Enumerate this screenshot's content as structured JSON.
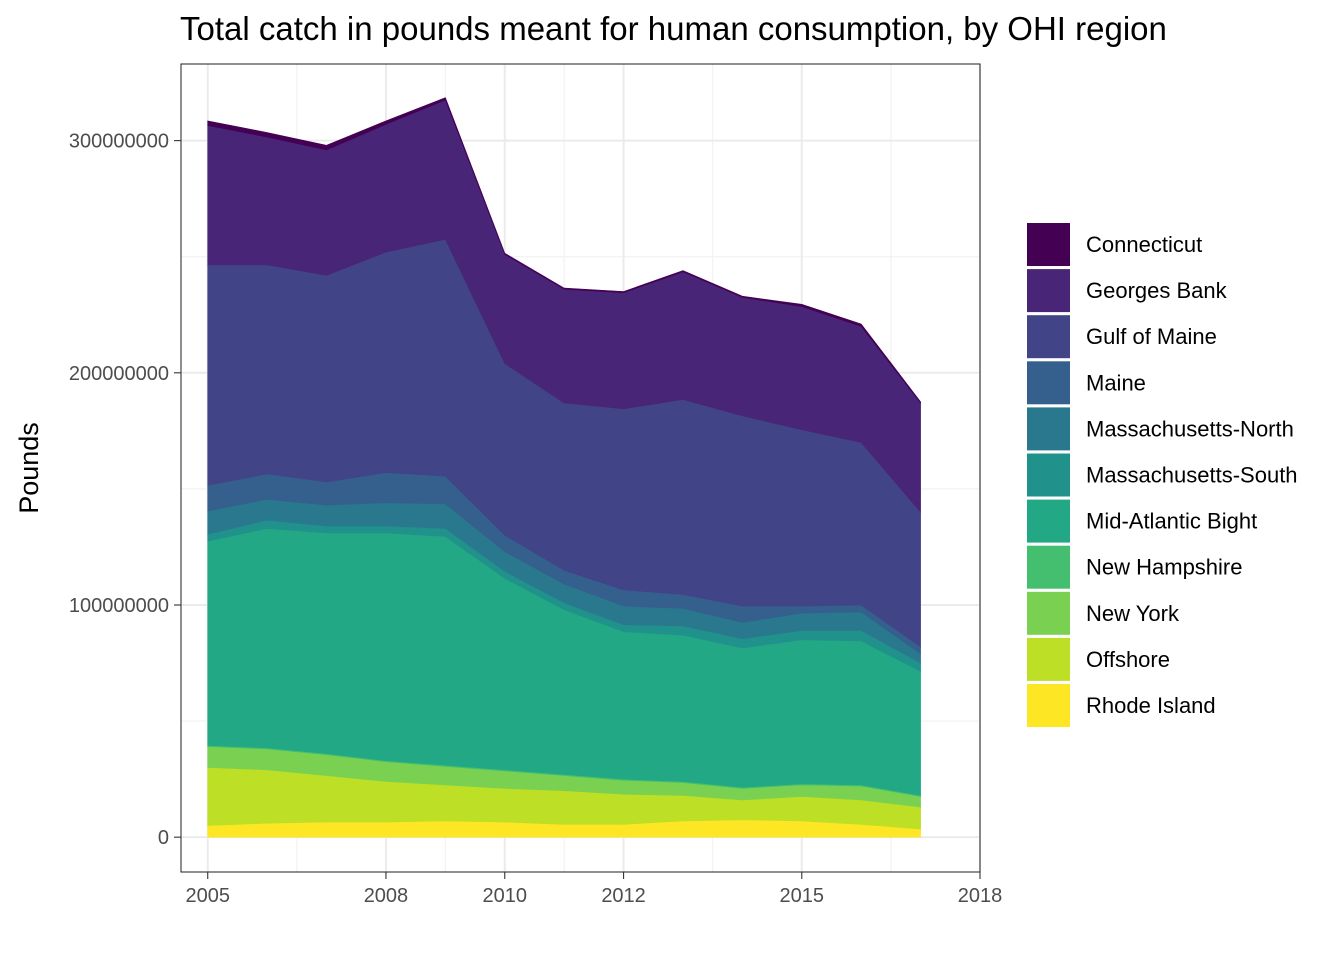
{
  "chart_data": {
    "type": "area",
    "stacked": true,
    "title": "Total catch in pounds meant for human consumption, by OHI region",
    "xlabel": "",
    "ylabel": "Pounds",
    "xlim": [
      2004.55,
      2018.0
    ],
    "ylim": [
      -15000000,
      333000000
    ],
    "x_ticks": [
      2005,
      2008,
      2010,
      2012,
      2015,
      2018
    ],
    "x_tick_labels": [
      "2005",
      "2008",
      "2010",
      "2012",
      "2015",
      "2018"
    ],
    "y_ticks": [
      0,
      100000000,
      200000000,
      300000000
    ],
    "y_tick_labels": [
      "0",
      "100000000",
      "200000000",
      "300000000"
    ],
    "x": [
      2005,
      2006,
      2007,
      2008,
      2009,
      2010,
      2011,
      2012,
      2013,
      2014,
      2015,
      2016,
      2017
    ],
    "grid": true,
    "legend_position": "right",
    "series": [
      {
        "name": "Rhode Island",
        "color": "#FDE725",
        "values": [
          5000000,
          6000000,
          6500000,
          6500000,
          7000000,
          6500000,
          5500000,
          5500000,
          7000000,
          7500000,
          7000000,
          5500000,
          3500000
        ]
      },
      {
        "name": "Offshore",
        "color": "#BDDF26",
        "values": [
          25000000,
          23000000,
          20000000,
          17500000,
          15500000,
          14500000,
          14500000,
          13000000,
          11000000,
          8500000,
          10500000,
          10500000,
          9500000
        ]
      },
      {
        "name": "New York",
        "color": "#7AD151",
        "values": [
          9000000,
          9000000,
          9000000,
          8500000,
          8000000,
          7500000,
          6500000,
          6000000,
          5500000,
          5000000,
          5000000,
          6000000,
          4500000
        ]
      },
      {
        "name": "New Hampshire",
        "color": "#44BF70",
        "values": [
          500000,
          500000,
          500000,
          500000,
          500000,
          500000,
          500000,
          500000,
          500000,
          500000,
          500000,
          500000,
          500000
        ]
      },
      {
        "name": "Mid-Atlantic Bight",
        "color": "#22A884",
        "values": [
          88000000,
          94500000,
          95000000,
          98000000,
          98500000,
          82500000,
          71000000,
          63500000,
          63000000,
          60000000,
          62000000,
          62000000,
          53500000
        ]
      },
      {
        "name": "Massachusetts-South",
        "color": "#21918C",
        "values": [
          3000000,
          3500000,
          3000000,
          3000000,
          3500000,
          3000000,
          3000000,
          3000000,
          4000000,
          4000000,
          4000000,
          4500000,
          3500000
        ]
      },
      {
        "name": "Massachusetts-North",
        "color": "#2A788E",
        "values": [
          10000000,
          9000000,
          9000000,
          10000000,
          10500000,
          8500000,
          8000000,
          8000000,
          7500000,
          7000000,
          7500000,
          8000000,
          4000000
        ]
      },
      {
        "name": "Maine",
        "color": "#355F8D",
        "values": [
          11000000,
          11000000,
          10000000,
          13000000,
          12000000,
          7000000,
          6000000,
          7000000,
          6000000,
          7000000,
          3000000,
          3000000,
          3000000
        ]
      },
      {
        "name": "Gulf of Maine",
        "color": "#414487",
        "values": [
          95000000,
          90000000,
          89000000,
          95000000,
          102000000,
          74000000,
          72000000,
          78000000,
          84000000,
          82000000,
          76000000,
          70000000,
          58000000
        ]
      },
      {
        "name": "Georges Bank",
        "color": "#482576",
        "values": [
          60000000,
          55000000,
          54000000,
          55000000,
          60000000,
          47000000,
          49000000,
          50000000,
          55000000,
          51000000,
          53000000,
          50000000,
          47000000
        ]
      },
      {
        "name": "Connecticut",
        "color": "#440154",
        "values": [
          2000000,
          2000000,
          2000000,
          1500000,
          1000000,
          500000,
          500000,
          500000,
          500000,
          500000,
          1000000,
          1000000,
          500000
        ]
      }
    ],
    "legend_order": [
      "Connecticut",
      "Georges Bank",
      "Gulf of Maine",
      "Maine",
      "Massachusetts-North",
      "Massachusetts-South",
      "Mid-Atlantic Bight",
      "New Hampshire",
      "New York",
      "Offshore",
      "Rhode Island"
    ]
  }
}
